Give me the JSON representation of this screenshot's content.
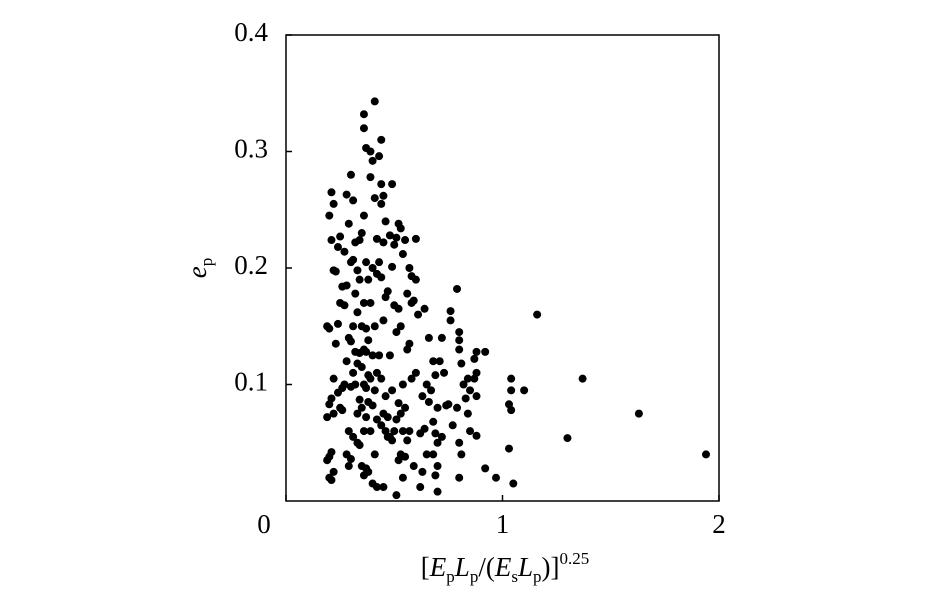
{
  "chart_data": {
    "type": "scatter",
    "color": "#000000",
    "xlabel": [
      {
        "text": "[",
        "style": "normal"
      },
      {
        "text": "E",
        "style": "italic"
      },
      {
        "text": "p",
        "style": "sub"
      },
      {
        "text": "L",
        "style": "italic"
      },
      {
        "text": "p",
        "style": "sub"
      },
      {
        "text": "/(",
        "style": "normal"
      },
      {
        "text": "E",
        "style": "italic"
      },
      {
        "text": "s",
        "style": "sub"
      },
      {
        "text": "L",
        "style": "italic"
      },
      {
        "text": "p",
        "style": "sub"
      },
      {
        "text": ")]",
        "style": "normal"
      },
      {
        "text": "0.25",
        "style": "sup"
      }
    ],
    "ylabel": [
      {
        "text": "e",
        "style": "italic"
      },
      {
        "text": "p",
        "style": "sub"
      }
    ],
    "xlim": [
      0,
      2
    ],
    "xticks": [
      0,
      1,
      2
    ],
    "ylim": [
      0,
      0.4
    ],
    "yticks": [
      0.1,
      0.2,
      0.3,
      0.4
    ],
    "x": [
      0.2,
      0.21,
      0.22,
      0.21,
      0.22,
      0.19,
      0.2,
      0.22,
      0.21,
      0.2,
      0.22,
      0.19,
      0.21,
      0.2,
      0.22,
      0.2,
      0.21,
      0.19,
      0.25,
      0.24,
      0.23,
      0.26,
      0.25,
      0.24,
      0.23,
      0.26,
      0.24,
      0.25,
      0.26,
      0.3,
      0.28,
      0.31,
      0.29,
      0.27,
      0.3,
      0.28,
      0.27,
      0.29,
      0.3,
      0.28,
      0.27,
      0.3,
      0.29,
      0.28,
      0.3,
      0.29,
      0.34,
      0.32,
      0.31,
      0.33,
      0.34,
      0.32,
      0.33,
      0.31,
      0.32,
      0.34,
      0.33,
      0.31,
      0.32,
      0.34,
      0.33,
      0.31,
      0.33,
      0.34,
      0.36,
      0.36,
      0.37,
      0.36,
      0.35,
      0.37,
      0.38,
      0.36,
      0.35,
      0.37,
      0.38,
      0.36,
      0.37,
      0.35,
      0.38,
      0.36,
      0.37,
      0.38,
      0.35,
      0.37,
      0.36,
      0.35,
      0.37,
      0.38,
      0.36,
      0.41,
      0.39,
      0.4,
      0.39,
      0.41,
      0.42,
      0.4,
      0.42,
      0.39,
      0.41,
      0.4,
      0.42,
      0.39,
      0.41,
      0.4,
      0.42,
      0.39,
      0.41,
      0.4,
      0.42,
      0.44,
      0.43,
      0.44,
      0.45,
      0.44,
      0.46,
      0.45,
      0.43,
      0.44,
      0.46,
      0.45,
      0.43,
      0.44,
      0.46,
      0.45,
      0.44,
      0.46,
      0.47,
      0.45,
      0.49,
      0.48,
      0.5,
      0.49,
      0.47,
      0.5,
      0.48,
      0.49,
      0.47,
      0.5,
      0.48,
      0.49,
      0.52,
      0.53,
      0.51,
      0.54,
      0.52,
      0.53,
      0.51,
      0.54,
      0.52,
      0.53,
      0.51,
      0.54,
      0.53,
      0.52,
      0.54,
      0.51,
      0.55,
      0.57,
      0.58,
      0.56,
      0.58,
      0.57,
      0.56,
      0.58,
      0.55,
      0.57,
      0.56,
      0.55,
      0.6,
      0.6,
      0.59,
      0.61,
      0.6,
      0.62,
      0.59,
      0.62,
      0.64,
      0.66,
      0.65,
      0.63,
      0.66,
      0.64,
      0.65,
      0.63,
      0.68,
      0.69,
      0.67,
      0.7,
      0.68,
      0.69,
      0.7,
      0.68,
      0.7,
      0.69,
      0.7,
      0.72,
      0.71,
      0.73,
      0.74,
      0.72,
      0.76,
      0.76,
      0.75,
      0.77,
      0.79,
      0.8,
      0.8,
      0.8,
      0.81,
      0.82,
      0.79,
      0.8,
      0.8,
      0.84,
      0.85,
      0.83,
      0.84,
      0.85,
      0.81,
      0.88,
      0.87,
      0.88,
      0.87,
      0.88,
      0.88,
      0.92,
      0.92,
      0.97,
      1.04,
      1.04,
      1.03,
      1.04,
      1.03,
      1.05,
      1.1,
      1.16,
      1.3,
      1.37,
      1.63,
      1.94
    ],
    "values": [
      0.245,
      0.265,
      0.255,
      0.224,
      0.198,
      0.15,
      0.148,
      0.105,
      0.088,
      0.083,
      0.075,
      0.072,
      0.042,
      0.038,
      0.025,
      0.02,
      0.018,
      0.035,
      0.227,
      0.218,
      0.197,
      0.184,
      0.17,
      0.152,
      0.135,
      0.097,
      0.093,
      0.08,
      0.078,
      0.28,
      0.263,
      0.258,
      0.238,
      0.214,
      0.205,
      0.185,
      0.168,
      0.14,
      0.137,
      0.12,
      0.1,
      0.098,
      0.06,
      0.04,
      0.036,
      0.03,
      0.224,
      0.222,
      0.207,
      0.198,
      0.19,
      0.178,
      0.162,
      0.15,
      0.128,
      0.127,
      0.118,
      0.11,
      0.1,
      0.087,
      0.075,
      0.055,
      0.05,
      0.048,
      0.332,
      0.32,
      0.303,
      0.245,
      0.23,
      0.205,
      0.19,
      0.17,
      0.15,
      0.148,
      0.138,
      0.13,
      0.128,
      0.115,
      0.108,
      0.1,
      0.097,
      0.085,
      0.08,
      0.072,
      0.06,
      0.03,
      0.028,
      0.025,
      0.022,
      0.343,
      0.3,
      0.292,
      0.278,
      0.26,
      0.225,
      0.2,
      0.195,
      0.17,
      0.15,
      0.125,
      0.11,
      0.105,
      0.095,
      0.082,
      0.07,
      0.06,
      0.04,
      0.015,
      0.012,
      0.31,
      0.296,
      0.272,
      0.262,
      0.255,
      0.24,
      0.222,
      0.205,
      0.192,
      0.175,
      0.155,
      0.125,
      0.105,
      0.09,
      0.075,
      0.065,
      0.06,
      0.055,
      0.012,
      0.272,
      0.228,
      0.22,
      0.201,
      0.18,
      0.168,
      0.125,
      0.095,
      0.072,
      0.06,
      0.055,
      0.052,
      0.238,
      0.234,
      0.226,
      0.212,
      0.165,
      0.15,
      0.145,
      0.1,
      0.084,
      0.075,
      0.07,
      0.06,
      0.04,
      0.035,
      0.02,
      0.005,
      0.224,
      0.2,
      0.193,
      0.178,
      0.17,
      0.135,
      0.13,
      0.105,
      0.08,
      0.06,
      0.052,
      0.038,
      0.225,
      0.19,
      0.172,
      0.16,
      0.11,
      0.058,
      0.03,
      0.012,
      0.165,
      0.14,
      0.1,
      0.09,
      0.085,
      0.062,
      0.04,
      0.025,
      0.12,
      0.108,
      0.095,
      0.08,
      0.068,
      0.058,
      0.05,
      0.04,
      0.03,
      0.022,
      0.008,
      0.14,
      0.12,
      0.11,
      0.082,
      0.055,
      0.163,
      0.155,
      0.083,
      0.065,
      0.182,
      0.145,
      0.138,
      0.13,
      0.118,
      0.1,
      0.08,
      0.05,
      0.02,
      0.105,
      0.095,
      0.088,
      0.075,
      0.06,
      0.04,
      0.128,
      0.122,
      0.11,
      0.105,
      0.09,
      0.056,
      0.128,
      0.028,
      0.02,
      0.105,
      0.095,
      0.083,
      0.078,
      0.045,
      0.015,
      0.095,
      0.16,
      0.054,
      0.105,
      0.075,
      0.04
    ]
  }
}
